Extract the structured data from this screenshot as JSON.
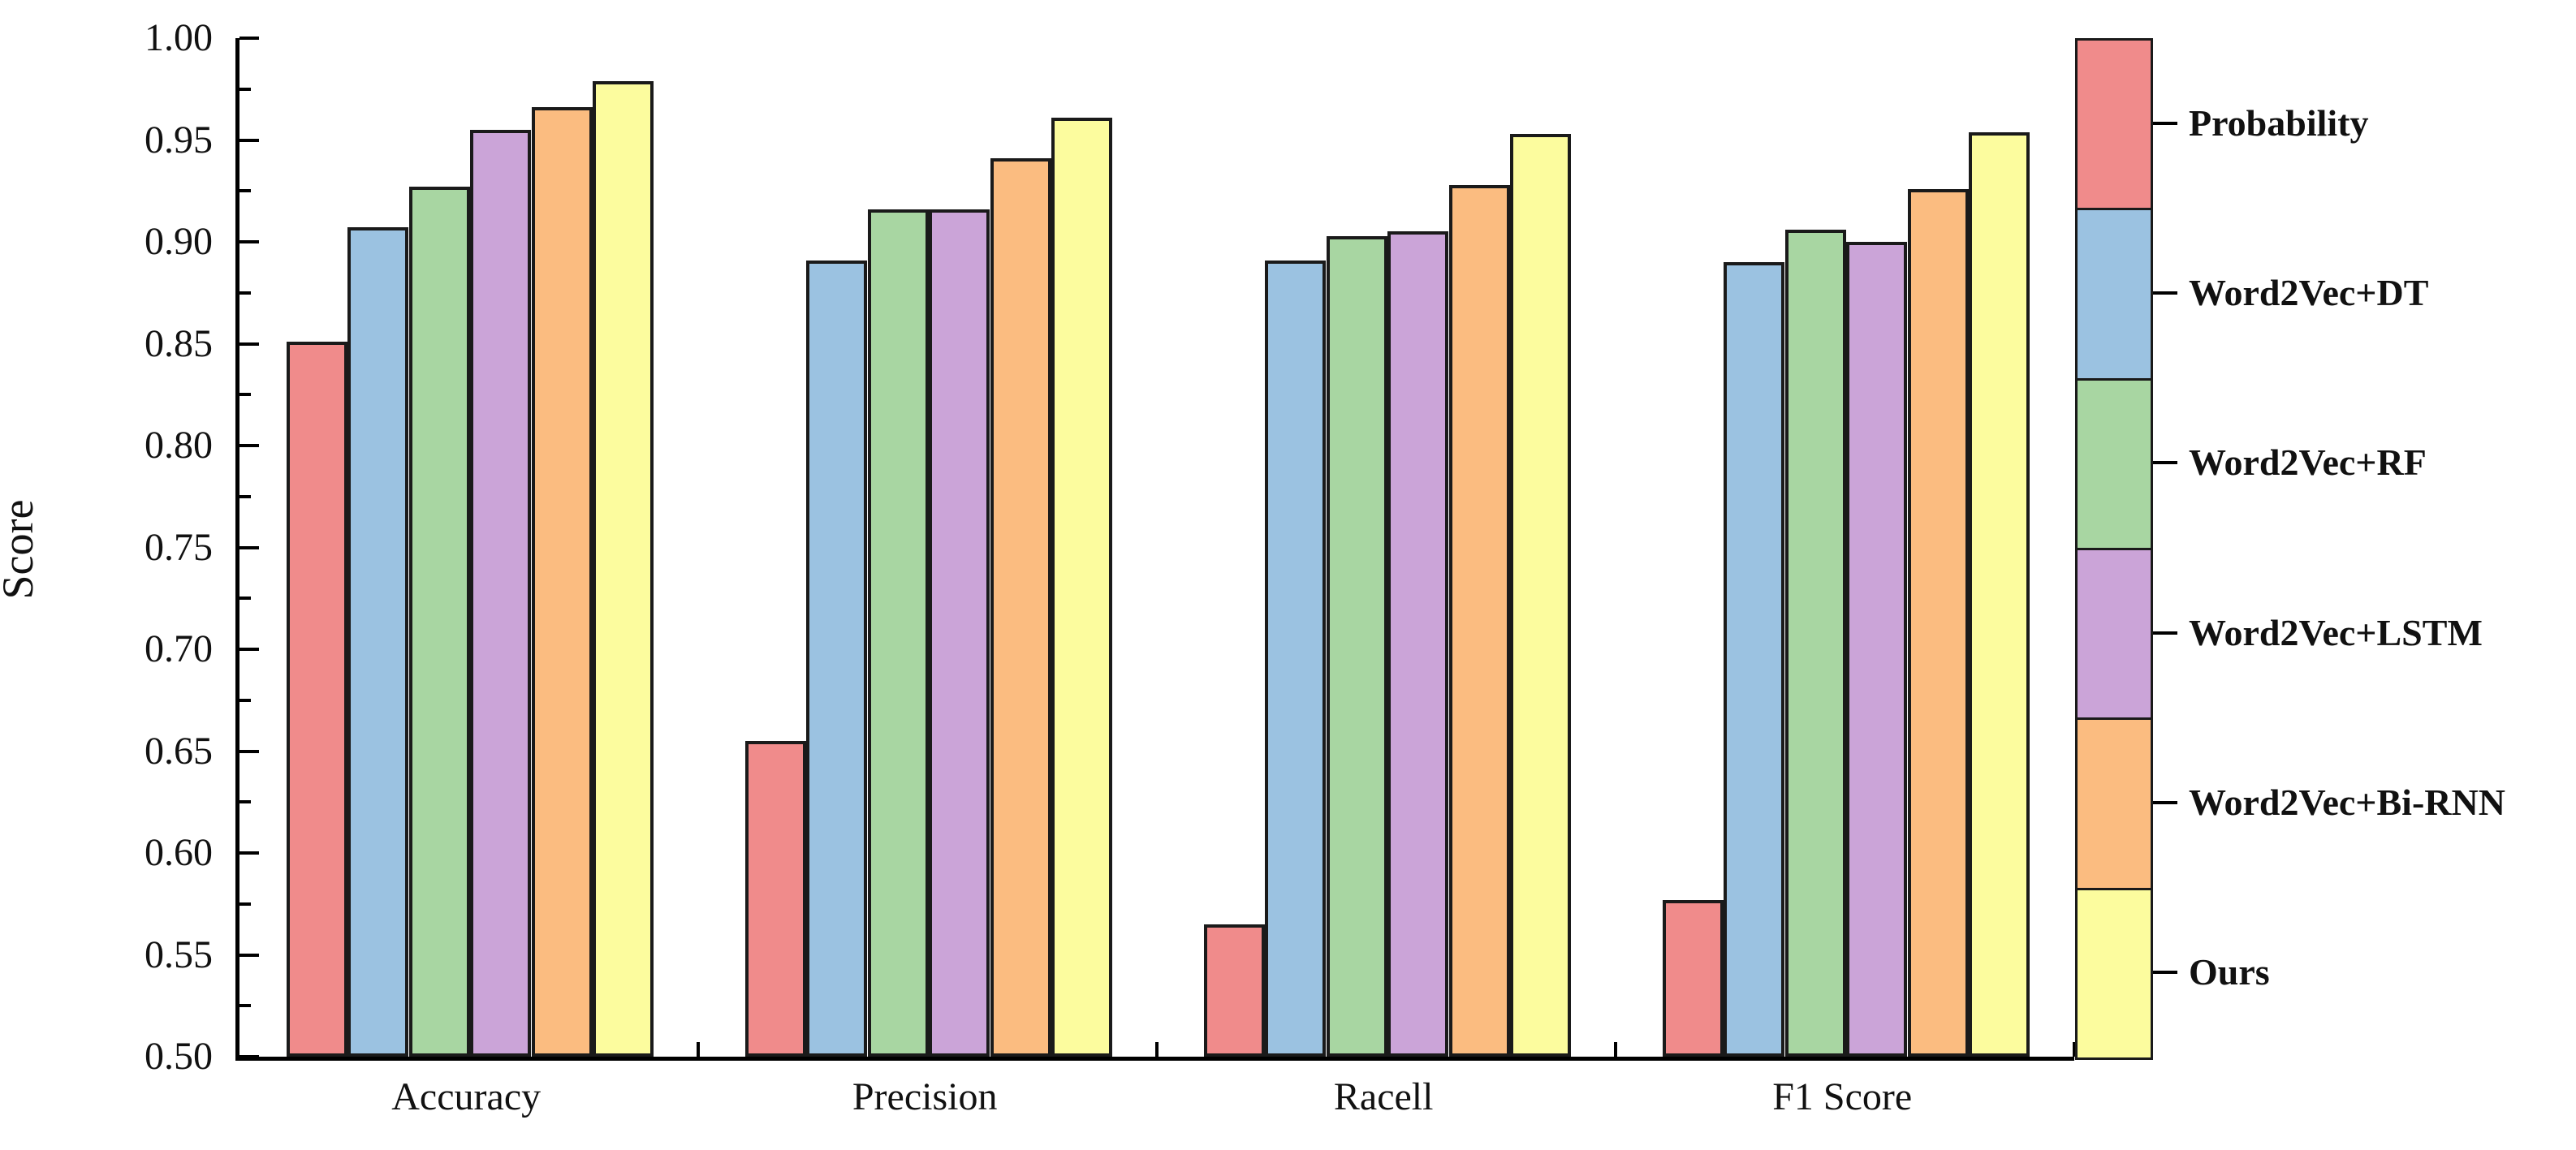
{
  "chart_data": {
    "type": "bar",
    "title": "",
    "xlabel": "",
    "ylabel": "Score",
    "ylim": [
      0.5,
      1.0
    ],
    "y_major_step": 0.05,
    "y_minor_step": 0.025,
    "grid": false,
    "legend_position": "right",
    "y_tick_labels": [
      "0.50",
      "0.55",
      "0.60",
      "0.65",
      "0.70",
      "0.75",
      "0.80",
      "0.85",
      "0.90",
      "0.95",
      "1.00"
    ],
    "categories": [
      "Accuracy",
      "Precision",
      "Racell",
      "F1 Score"
    ],
    "series": [
      {
        "name": "Probability",
        "color": "#F08B8B",
        "values": [
          0.851,
          0.655,
          0.565,
          0.577
        ]
      },
      {
        "name": "Word2Vec+DT",
        "color": "#9BC2E1",
        "values": [
          0.907,
          0.891,
          0.891,
          0.89
        ]
      },
      {
        "name": "Word2Vec+RF",
        "color": "#A8D6A2",
        "values": [
          0.927,
          0.916,
          0.903,
          0.906
        ]
      },
      {
        "name": "Word2Vec+LSTM",
        "color": "#CBA4D8",
        "values": [
          0.955,
          0.916,
          0.905,
          0.9
        ]
      },
      {
        "name": "Word2Vec+Bi-RNN",
        "color": "#FBBC80",
        "values": [
          0.966,
          0.941,
          0.928,
          0.926
        ]
      },
      {
        "name": "Ours",
        "color": "#FCFC9E",
        "values": [
          0.979,
          0.961,
          0.953,
          0.954
        ]
      }
    ]
  }
}
